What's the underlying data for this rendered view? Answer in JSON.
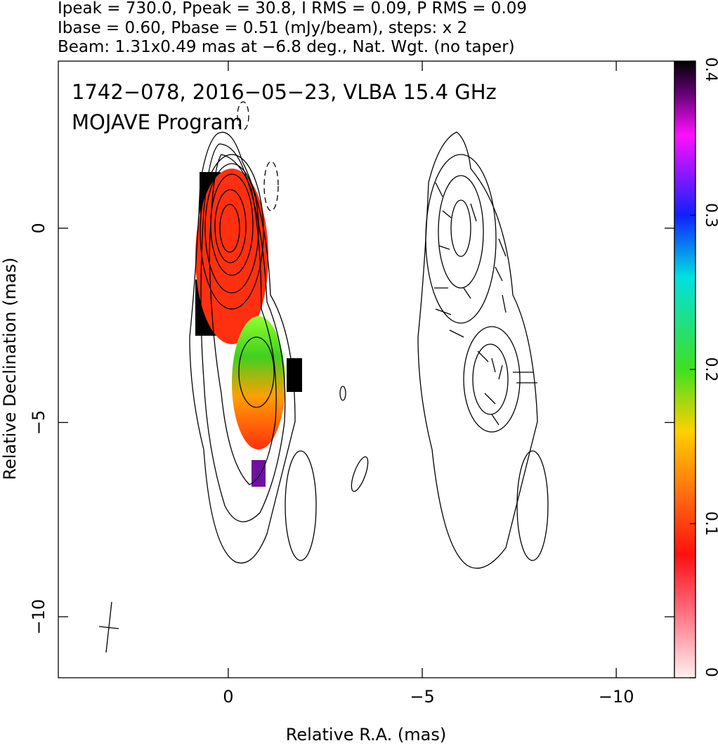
{
  "chart_data": {
    "type": "contour-map",
    "header": [
      "Ipeak = 730.0, Ppeak = 30.8, I RMS = 0.09, P RMS = 0.09",
      "Ibase = 0.60, Pbase = 0.51 (mJy/beam), steps: x 2",
      "Beam: 1.31x0.49 mas at −6.8 deg., Nat. Wgt. (no taper)"
    ],
    "title": [
      "1742−078, 2016−05−23, VLBA 15.4 GHz",
      "MOJAVE Program"
    ],
    "xlabel": "Relative R.A. (mas)",
    "ylabel": "Relative Declination (mas)",
    "xlim": [
      4.38,
      -11.5
    ],
    "ylim": [
      -11.57,
      4.3
    ],
    "xticks": [
      0,
      {
        "value": -5,
        "label": "−5"
      },
      {
        "value": -10,
        "label": "−10"
      }
    ],
    "yticks": [
      0,
      {
        "value": -5,
        "label": "−5"
      },
      {
        "value": -10,
        "label": "−10"
      }
    ],
    "colorbar": {
      "lim": [
        0,
        0.4
      ],
      "ticks": [
        0,
        0.1,
        0.2,
        0.3,
        0.4
      ]
    }
  }
}
